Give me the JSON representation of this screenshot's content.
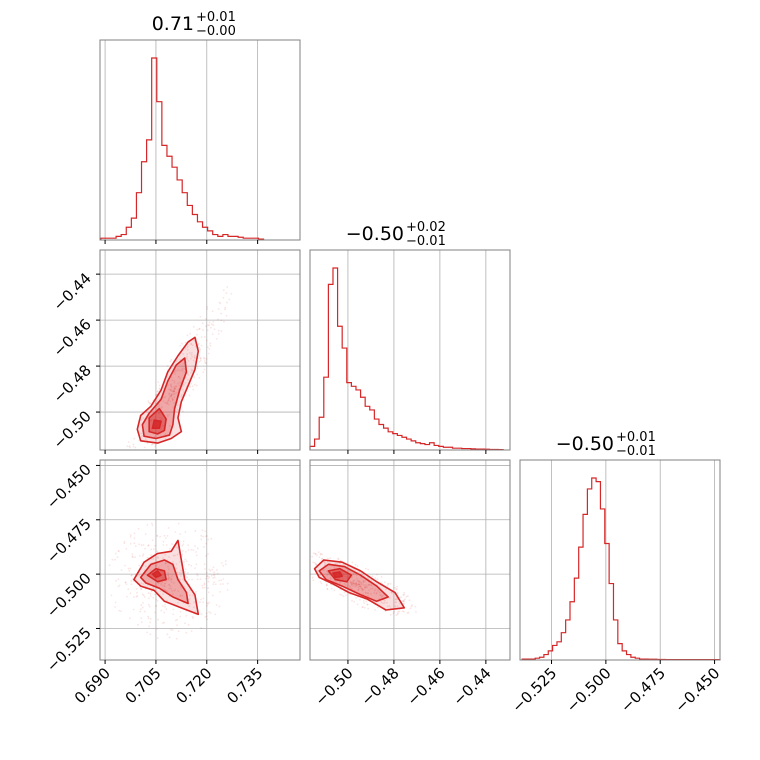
{
  "chart_data": {
    "type": "corner",
    "color": "#d62728",
    "titles": [
      {
        "value": "0.71",
        "plus": "+0.01",
        "minus": "−0.00"
      },
      {
        "value": "−0.50",
        "plus": "+0.02",
        "minus": "−0.01"
      },
      {
        "value": "−0.50",
        "plus": "+0.01",
        "minus": "−0.01"
      }
    ],
    "params": [
      {
        "range": [
          0.6885,
          0.7475
        ],
        "ticks": [
          0.69,
          0.705,
          0.72,
          0.735
        ],
        "tick_labels": [
          "0.690",
          "0.705",
          "0.720",
          "0.735"
        ]
      },
      {
        "range": [
          -0.5165,
          -0.4295
        ],
        "ticks": [
          -0.5,
          -0.48,
          -0.46,
          -0.44
        ],
        "tick_labels": [
          "−0.50",
          "−0.48",
          "−0.46",
          "−0.44"
        ]
      },
      {
        "range": [
          -0.5395,
          -0.4475
        ],
        "ticks": [
          -0.525,
          -0.5,
          -0.475,
          -0.45
        ],
        "tick_labels": [
          "−0.525",
          "−0.500",
          "−0.475",
          "−0.450"
        ]
      }
    ],
    "grid": true,
    "histograms": [
      {
        "param": 0,
        "bins": [
          [
            0.6895,
            0.01
          ],
          [
            0.691,
            0.01
          ],
          [
            0.6925,
            0.01
          ],
          [
            0.694,
            0.02
          ],
          [
            0.6955,
            0.03
          ],
          [
            0.697,
            0.07
          ],
          [
            0.6985,
            0.12
          ],
          [
            0.7,
            0.26
          ],
          [
            0.7015,
            0.43
          ],
          [
            0.703,
            0.55
          ],
          [
            0.7045,
            1.0
          ],
          [
            0.706,
            0.76
          ],
          [
            0.7075,
            0.52
          ],
          [
            0.709,
            0.46
          ],
          [
            0.7105,
            0.4
          ],
          [
            0.712,
            0.33
          ],
          [
            0.7135,
            0.26
          ],
          [
            0.715,
            0.19
          ],
          [
            0.7165,
            0.14
          ],
          [
            0.718,
            0.1
          ],
          [
            0.7195,
            0.07
          ],
          [
            0.721,
            0.05
          ],
          [
            0.7225,
            0.03
          ],
          [
            0.724,
            0.02
          ],
          [
            0.7255,
            0.03
          ],
          [
            0.727,
            0.02
          ],
          [
            0.7285,
            0.02
          ],
          [
            0.73,
            0.015
          ],
          [
            0.7315,
            0.01
          ],
          [
            0.733,
            0.01
          ],
          [
            0.7345,
            0.01
          ],
          [
            0.736,
            0.005
          ]
        ]
      },
      {
        "param": 1,
        "bins": [
          [
            -0.5155,
            0.02
          ],
          [
            -0.5135,
            0.06
          ],
          [
            -0.5115,
            0.18
          ],
          [
            -0.5095,
            0.4
          ],
          [
            -0.5075,
            0.91
          ],
          [
            -0.5055,
            1.0
          ],
          [
            -0.5035,
            0.68
          ],
          [
            -0.5015,
            0.56
          ],
          [
            -0.4995,
            0.37
          ],
          [
            -0.4975,
            0.35
          ],
          [
            -0.4955,
            0.33
          ],
          [
            -0.4935,
            0.29
          ],
          [
            -0.4915,
            0.24
          ],
          [
            -0.4895,
            0.22
          ],
          [
            -0.4875,
            0.17
          ],
          [
            -0.4855,
            0.14
          ],
          [
            -0.4835,
            0.12
          ],
          [
            -0.4815,
            0.1
          ],
          [
            -0.4795,
            0.09
          ],
          [
            -0.4775,
            0.08
          ],
          [
            -0.4755,
            0.07
          ],
          [
            -0.4735,
            0.06
          ],
          [
            -0.4715,
            0.05
          ],
          [
            -0.4695,
            0.04
          ],
          [
            -0.4675,
            0.035
          ],
          [
            -0.4655,
            0.03
          ],
          [
            -0.4635,
            0.04
          ],
          [
            -0.4615,
            0.025
          ],
          [
            -0.4595,
            0.02
          ],
          [
            -0.4575,
            0.015
          ],
          [
            -0.4555,
            0.015
          ],
          [
            -0.4535,
            0.01
          ],
          [
            -0.4515,
            0.01
          ],
          [
            -0.4495,
            0.008
          ],
          [
            -0.4475,
            0.008
          ],
          [
            -0.4455,
            0.006
          ],
          [
            -0.4435,
            0.005
          ],
          [
            -0.4415,
            0.005
          ],
          [
            -0.4395,
            0.004
          ],
          [
            -0.4375,
            0.003
          ],
          [
            -0.4355,
            0.003
          ],
          [
            -0.4335,
            0.002
          ]
        ]
      },
      {
        "param": 2,
        "bins": [
          [
            -0.5375,
            0.005
          ],
          [
            -0.5355,
            0.005
          ],
          [
            -0.5335,
            0.005
          ],
          [
            -0.5315,
            0.01
          ],
          [
            -0.5295,
            0.015
          ],
          [
            -0.5275,
            0.03
          ],
          [
            -0.5255,
            0.05
          ],
          [
            -0.5235,
            0.08
          ],
          [
            -0.5215,
            0.1
          ],
          [
            -0.5195,
            0.15
          ],
          [
            -0.5175,
            0.22
          ],
          [
            -0.5155,
            0.32
          ],
          [
            -0.5135,
            0.45
          ],
          [
            -0.5115,
            0.62
          ],
          [
            -0.5095,
            0.8
          ],
          [
            -0.5075,
            0.94
          ],
          [
            -0.5055,
            1.0
          ],
          [
            -0.5035,
            0.98
          ],
          [
            -0.5015,
            0.83
          ],
          [
            -0.4995,
            0.64
          ],
          [
            -0.4975,
            0.42
          ],
          [
            -0.4955,
            0.22
          ],
          [
            -0.4935,
            0.09
          ],
          [
            -0.4915,
            0.05
          ],
          [
            -0.4895,
            0.03
          ],
          [
            -0.4875,
            0.015
          ],
          [
            -0.4855,
            0.01
          ],
          [
            -0.4835,
            0.005
          ],
          [
            -0.4815,
            0.005
          ],
          [
            -0.4795,
            0.004
          ],
          [
            -0.4775,
            0.004
          ],
          [
            -0.4755,
            0.003
          ],
          [
            -0.4735,
            0.003
          ],
          [
            -0.4715,
            0.002
          ],
          [
            -0.4695,
            0.002
          ],
          [
            -0.4675,
            0.002
          ],
          [
            -0.4655,
            0.002
          ],
          [
            -0.4635,
            0.002
          ],
          [
            -0.4615,
            0.002
          ],
          [
            -0.4595,
            0.002
          ],
          [
            -0.4575,
            0.002
          ],
          [
            -0.4555,
            0.002
          ],
          [
            -0.4535,
            0.002
          ],
          [
            -0.4515,
            0.002
          ],
          [
            -0.4495,
            0.002
          ],
          [
            -0.4485,
            0.002
          ]
        ]
      }
    ],
    "contours": [
      {
        "x_param": 0,
        "y_param": 1,
        "levels": [
          [
            [
              0.7005,
              -0.5125
            ],
            [
              0.6995,
              -0.5075
            ],
            [
              0.7005,
              -0.5015
            ],
            [
              0.7035,
              -0.4975
            ],
            [
              0.7065,
              -0.4905
            ],
            [
              0.7085,
              -0.4825
            ],
            [
              0.7115,
              -0.4755
            ],
            [
              0.7145,
              -0.4695
            ],
            [
              0.7165,
              -0.4675
            ],
            [
              0.7175,
              -0.4735
            ],
            [
              0.7165,
              -0.4815
            ],
            [
              0.7145,
              -0.4885
            ],
            [
              0.7125,
              -0.4955
            ],
            [
              0.7115,
              -0.5025
            ],
            [
              0.7125,
              -0.5085
            ],
            [
              0.7095,
              -0.5115
            ],
            [
              0.7055,
              -0.5135
            ]
          ],
          [
            [
              0.7015,
              -0.5105
            ],
            [
              0.701,
              -0.5055
            ],
            [
              0.703,
              -0.5005
            ],
            [
              0.7065,
              -0.4945
            ],
            [
              0.7085,
              -0.4865
            ],
            [
              0.711,
              -0.4795
            ],
            [
              0.7135,
              -0.4765
            ],
            [
              0.714,
              -0.4825
            ],
            [
              0.712,
              -0.4905
            ],
            [
              0.7105,
              -0.4985
            ],
            [
              0.71,
              -0.5055
            ],
            [
              0.709,
              -0.51
            ],
            [
              0.705,
              -0.5115
            ]
          ],
          [
            [
              0.703,
              -0.5085
            ],
            [
              0.703,
              -0.5025
            ],
            [
              0.706,
              -0.4985
            ],
            [
              0.708,
              -0.503
            ],
            [
              0.7075,
              -0.508
            ],
            [
              0.7055,
              -0.5095
            ]
          ],
          [
            [
              0.704,
              -0.507
            ],
            [
              0.7045,
              -0.5035
            ],
            [
              0.7065,
              -0.504
            ],
            [
              0.706,
              -0.507
            ]
          ]
        ]
      },
      {
        "x_param": 0,
        "y_param": 2,
        "levels": [
          [
            [
              0.6985,
              -0.5025
            ],
            [
              0.7015,
              -0.4945
            ],
            [
              0.7055,
              -0.4905
            ],
            [
              0.7095,
              -0.4895
            ],
            [
              0.7115,
              -0.4845
            ],
            [
              0.7125,
              -0.4935
            ],
            [
              0.7135,
              -0.5025
            ],
            [
              0.7165,
              -0.5095
            ],
            [
              0.7175,
              -0.5185
            ],
            [
              0.7125,
              -0.5155
            ],
            [
              0.7075,
              -0.5125
            ],
            [
              0.7045,
              -0.5075
            ],
            [
              0.7005,
              -0.5055
            ]
          ],
          [
            [
              0.7005,
              -0.5015
            ],
            [
              0.7035,
              -0.4955
            ],
            [
              0.7075,
              -0.4935
            ],
            [
              0.71,
              -0.4955
            ],
            [
              0.7115,
              -0.5025
            ],
            [
              0.714,
              -0.5085
            ],
            [
              0.7145,
              -0.5135
            ],
            [
              0.71,
              -0.5105
            ],
            [
              0.706,
              -0.5065
            ],
            [
              0.702,
              -0.504
            ]
          ],
          [
            [
              0.7025,
              -0.5005
            ],
            [
              0.705,
              -0.4975
            ],
            [
              0.7075,
              -0.4985
            ],
            [
              0.708,
              -0.5025
            ],
            [
              0.7055,
              -0.5035
            ]
          ],
          [
            [
              0.704,
              -0.5
            ],
            [
              0.7055,
              -0.4985
            ],
            [
              0.7065,
              -0.5005
            ],
            [
              0.705,
              -0.5015
            ]
          ]
        ]
      },
      {
        "x_param": 1,
        "y_param": 2,
        "levels": [
          [
            [
              -0.5145,
              -0.4975
            ],
            [
              -0.5105,
              -0.4935
            ],
            [
              -0.5025,
              -0.4945
            ],
            [
              -0.4945,
              -0.4985
            ],
            [
              -0.4875,
              -0.5035
            ],
            [
              -0.4795,
              -0.5085
            ],
            [
              -0.4755,
              -0.5155
            ],
            [
              -0.4835,
              -0.5165
            ],
            [
              -0.4915,
              -0.5115
            ],
            [
              -0.4995,
              -0.5085
            ],
            [
              -0.5065,
              -0.5045
            ],
            [
              -0.5125,
              -0.5015
            ]
          ],
          [
            [
              -0.5125,
              -0.4985
            ],
            [
              -0.5085,
              -0.4955
            ],
            [
              -0.5015,
              -0.4965
            ],
            [
              -0.4945,
              -0.5005
            ],
            [
              -0.4875,
              -0.5055
            ],
            [
              -0.4825,
              -0.5105
            ],
            [
              -0.4875,
              -0.5125
            ],
            [
              -0.4945,
              -0.5095
            ],
            [
              -0.5025,
              -0.5055
            ],
            [
              -0.5095,
              -0.5025
            ]
          ],
          [
            [
              -0.5085,
              -0.4985
            ],
            [
              -0.5035,
              -0.4975
            ],
            [
              -0.4985,
              -0.5005
            ],
            [
              -0.5005,
              -0.5035
            ],
            [
              -0.5055,
              -0.5025
            ]
          ],
          [
            [
              -0.5065,
              -0.4995
            ],
            [
              -0.5035,
              -0.499
            ],
            [
              -0.5025,
              -0.501
            ],
            [
              -0.5055,
              -0.5015
            ]
          ]
        ]
      }
    ]
  }
}
